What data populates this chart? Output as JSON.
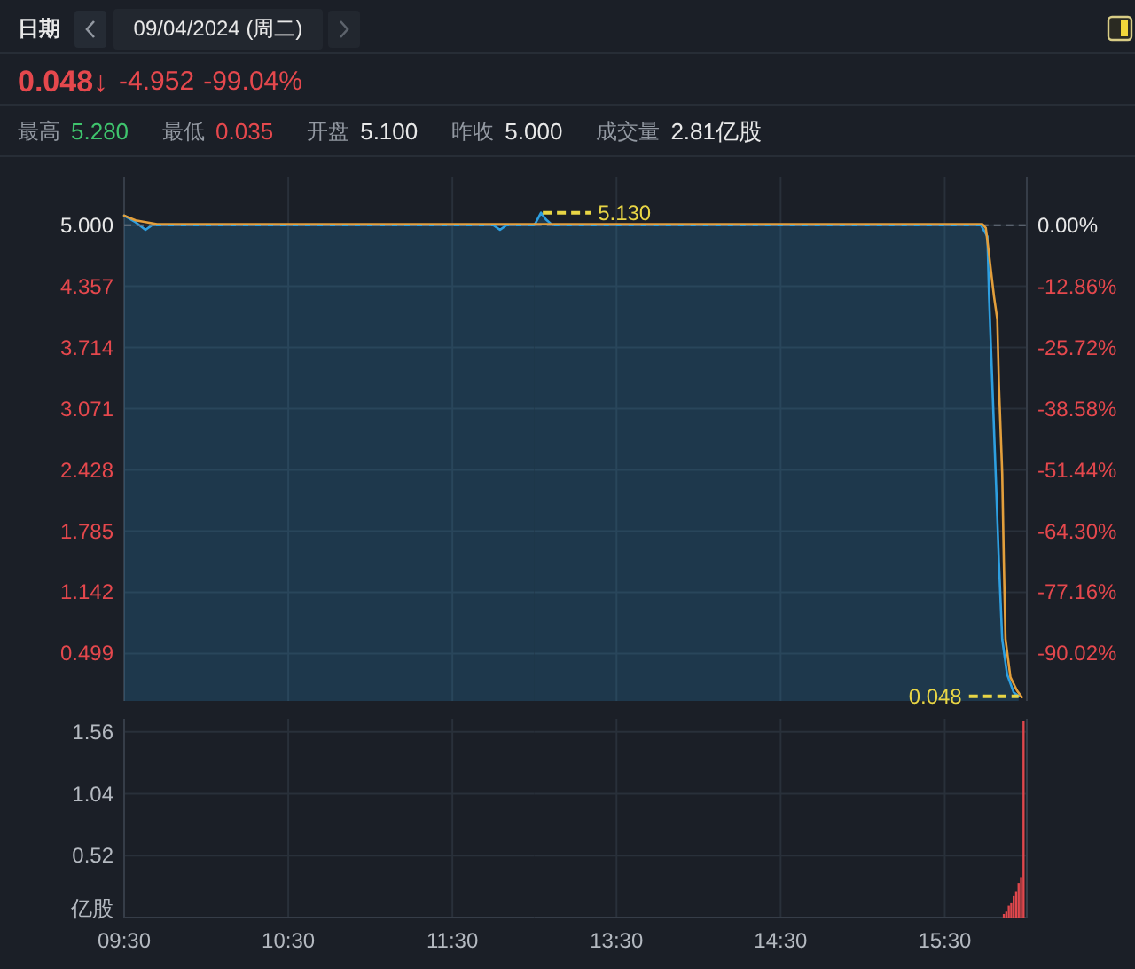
{
  "chart_data": [
    {
      "type": "other",
      "annotations": [
        "日期",
        "09/04/2024 (周二)",
        "0.048↓",
        "-4.952",
        "-99.04%",
        "最高",
        "5.280",
        "最低",
        "0.035",
        "开盘",
        "5.100",
        "昨收",
        "5.000",
        "成交量",
        "2.81亿股"
      ]
    },
    {
      "type": "line",
      "series": [
        {
          "type": "area",
          "color": "#2e9fe0",
          "x": [
            9.5,
            9.57,
            9.63,
            9.67,
            11.75,
            11.79,
            11.83,
            12.0
          ],
          "values": [
            5.1,
            5.03,
            4.95,
            5.0,
            5.0,
            4.95,
            5.0,
            5.0
          ]
        },
        {
          "type": "line",
          "color": "#e39f3c",
          "x": [
            9.5,
            9.57,
            9.7,
            12.0
          ],
          "values": [
            5.1,
            5.05,
            5.01,
            5.01
          ]
        }
      ],
      "xlim": [
        9.5,
        12
      ],
      "xticks": [
        {
          "value": 9.5,
          "label": null
        },
        {
          "value": 10.5,
          "label": null
        },
        {
          "value": 11.5,
          "label": null
        }
      ],
      "ylim": [
        0,
        5.5
      ],
      "yticks": [
        {
          "value": 5,
          "label": "5.000"
        },
        4.357,
        3.714,
        3.071,
        2.428,
        1.785,
        1.142,
        0.499
      ],
      "grid": true,
      "tick_labels": "y",
      "ref_lines": [
        {
          "axis": "y",
          "value": 5,
          "color": "#6b7480",
          "line_style": "dashed"
        }
      ]
    },
    {
      "type": "line",
      "series": [
        {
          "type": "area",
          "color": "#2e9fe0",
          "x": [
            13.0,
            13.04,
            13.07,
            13.11,
            15.72,
            15.76,
            15.77,
            15.79,
            15.81,
            15.83,
            15.85,
            15.88,
            15.92,
            15.95
          ],
          "values": [
            5.0,
            5.13,
            5.06,
            5.0,
            5.0,
            4.88,
            4.25,
            3.32,
            2.39,
            1.46,
            0.65,
            0.28,
            0.09,
            0.05
          ]
        },
        {
          "type": "line",
          "color": "#e39f3c",
          "x": [
            13.0,
            15.73,
            15.75,
            15.77,
            15.8,
            15.82,
            15.83,
            15.85,
            15.86,
            15.87,
            15.9,
            15.94,
            15.97
          ],
          "values": [
            5.01,
            5.01,
            4.97,
            4.69,
            4.25,
            4.01,
            3.32,
            2.39,
            1.46,
            0.65,
            0.25,
            0.11,
            0.04
          ]
        }
      ],
      "xlim": [
        13,
        16
      ],
      "xticks": [
        {
          "value": 13.5,
          "label": null
        },
        {
          "value": 14.5,
          "label": null
        },
        {
          "value": 15.5,
          "label": null
        }
      ],
      "ylim": [
        0,
        5.5
      ],
      "yticks": [
        {
          "value": 5,
          "label": null
        },
        {
          "value": 4.357,
          "label": null
        },
        {
          "value": 3.714,
          "label": null
        },
        {
          "value": 3.071,
          "label": null
        },
        {
          "value": 2.428,
          "label": null
        },
        {
          "value": 1.785,
          "label": null
        },
        {
          "value": 1.142,
          "label": null
        },
        {
          "value": 0.499,
          "label": null
        }
      ],
      "y2lim": [
        -100,
        10
      ],
      "y2ticks": [
        {
          "value": 0,
          "label": "0.00%"
        },
        {
          "value": -12.86,
          "label": "-12.86%"
        },
        {
          "value": -25.72,
          "label": "-25.72%"
        },
        {
          "value": -38.58,
          "label": "-38.58%"
        },
        {
          "value": -51.44,
          "label": "-51.44%"
        },
        {
          "value": -64.3,
          "label": "-64.30%"
        },
        {
          "value": -77.16,
          "label": "-77.16%"
        },
        {
          "value": -90.02,
          "label": "-90.02%"
        }
      ],
      "grid": true,
      "tick_labels": false,
      "ref_lines": [
        {
          "axis": "y",
          "value": 5,
          "color": "#6b7480",
          "line_style": "dashed"
        }
      ],
      "annotations": [
        {
          "text": "5.130",
          "x": 13.04,
          "y": 5.13
        },
        {
          "text": "0.048",
          "x": 15.95,
          "y": 0.048
        }
      ]
    },
    {
      "type": "bar",
      "xlim": [
        9.5,
        12
      ],
      "xticks": [
        {
          "value": 9.5,
          "label": "09:30"
        },
        {
          "value": 10.5,
          "label": "10:30"
        },
        {
          "value": 11.5,
          "label": "11:30"
        }
      ],
      "ylim": [
        0,
        1.67
      ],
      "yticks": [
        0.52,
        1.04,
        1.56
      ],
      "ylabel": "亿股",
      "grid": true
    },
    {
      "type": "bar",
      "x": [
        15.86,
        15.875,
        15.89,
        15.905,
        15.92,
        15.935,
        15.95,
        15.965,
        15.98
      ],
      "values": [
        0.03,
        0.05,
        0.1,
        0.12,
        0.18,
        0.22,
        0.29,
        0.34,
        1.65
      ],
      "color": "#e0474c",
      "xlim": [
        13,
        16
      ],
      "xticks": [
        {
          "value": 13.5,
          "label": "13:30"
        },
        {
          "value": 14.5,
          "label": "14:30"
        },
        {
          "value": 15.5,
          "label": "15:30"
        }
      ],
      "ylim": [
        0,
        1.67
      ],
      "yticks": [
        {
          "value": 0.52,
          "label": null
        },
        {
          "value": 1.04,
          "label": null
        },
        {
          "value": 1.56,
          "label": null
        }
      ],
      "grid": true,
      "tick_labels": "x"
    }
  ]
}
